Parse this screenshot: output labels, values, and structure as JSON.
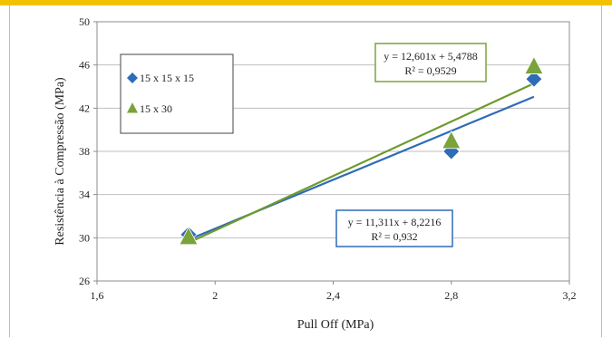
{
  "chart_data": {
    "type": "scatter",
    "xlabel": "Pull Off (MPa)",
    "ylabel": "Resistência à Compressão (MPa)",
    "xlim": [
      1.6,
      3.2
    ],
    "ylim": [
      26,
      50
    ],
    "x_ticks": [
      "1,6",
      "2",
      "2,4",
      "2,8",
      "3,2"
    ],
    "y_ticks": [
      "26",
      "30",
      "34",
      "38",
      "42",
      "46",
      "50"
    ],
    "x_tick_values": [
      1.6,
      2.0,
      2.4,
      2.8,
      3.2
    ],
    "y_tick_values": [
      26,
      30,
      34,
      38,
      42,
      46,
      50
    ],
    "grid": "horizontal",
    "legend_position": "left",
    "series": [
      {
        "name": "15 x 15 x 15",
        "marker": "diamond",
        "color": "#2e6bb8",
        "points": [
          [
            1.91,
            30.3
          ],
          [
            2.8,
            38.0
          ],
          [
            3.08,
            44.7
          ]
        ],
        "trendline": {
          "slope": 11.311,
          "intercept": 8.2216,
          "x_range": [
            1.91,
            3.08
          ],
          "equation": "y = 11,311x + 8,2216",
          "r2": "R² = 0,932",
          "color": "#2e6bb8"
        }
      },
      {
        "name": "15 x 30",
        "marker": "triangle",
        "color": "#7aa33a",
        "points": [
          [
            1.91,
            30.0
          ],
          [
            2.8,
            38.9
          ],
          [
            3.08,
            45.8
          ]
        ],
        "trendline": {
          "slope": 12.601,
          "intercept": 5.4788,
          "x_range": [
            1.91,
            3.08
          ],
          "equation": "y = 12,601x + 5,4788",
          "r2": "R² = 0,9529",
          "color": "#6e9a2c"
        }
      }
    ]
  }
}
